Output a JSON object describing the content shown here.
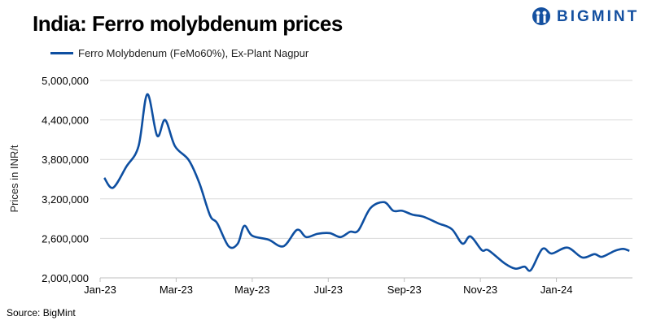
{
  "title": "India: Ferro molybdenum prices",
  "brand": "BIGMINT",
  "source": "Source: BigMint",
  "colors": {
    "line": "#0e4fa1",
    "grid": "#d9d9d9"
  },
  "chart_data": {
    "type": "line",
    "title": "India: Ferro molybdenum prices",
    "xlabel": "",
    "ylabel": "Prices in INR/t",
    "ylim": [
      2000000,
      5000000
    ],
    "yticks": [
      2000000,
      2600000,
      3200000,
      3800000,
      4400000,
      5000000
    ],
    "ytick_labels": [
      "2,000,000",
      "2,600,000",
      "3,200,000",
      "3,800,000",
      "4,400,000",
      "5,000,000"
    ],
    "x_unit": "months since Jan-23",
    "xlim": [
      0,
      14
    ],
    "xticks": [
      0,
      2,
      4,
      6,
      8,
      10,
      12
    ],
    "xtick_labels": [
      "Jan-23",
      "Mar-23",
      "May-23",
      "Jul-23",
      "Sep-23",
      "Nov-23",
      "Jan-24"
    ],
    "grid": true,
    "legend": "top-left",
    "series": [
      {
        "name": "Ferro Molybdenum (FeMo60%), Ex-Plant Nagpur",
        "x": [
          0.11,
          0.34,
          0.69,
          1.01,
          1.24,
          1.5,
          1.71,
          1.97,
          2.33,
          2.61,
          2.89,
          3.08,
          3.38,
          3.62,
          3.79,
          4.0,
          4.43,
          4.82,
          5.18,
          5.42,
          5.72,
          6.04,
          6.32,
          6.57,
          6.79,
          7.11,
          7.47,
          7.71,
          7.94,
          8.22,
          8.5,
          8.89,
          9.25,
          9.53,
          9.74,
          10.04,
          10.21,
          10.64,
          10.92,
          11.16,
          11.33,
          11.63,
          11.88,
          12.29,
          12.68,
          13.0,
          13.2,
          13.53,
          13.75,
          13.92
        ],
        "y": [
          3520000,
          3370000,
          3690000,
          4000000,
          4790000,
          4160000,
          4400000,
          4000000,
          3790000,
          3440000,
          2950000,
          2830000,
          2480000,
          2520000,
          2790000,
          2640000,
          2580000,
          2480000,
          2730000,
          2620000,
          2670000,
          2680000,
          2620000,
          2700000,
          2720000,
          3060000,
          3150000,
          3020000,
          3020000,
          2960000,
          2930000,
          2830000,
          2740000,
          2520000,
          2630000,
          2420000,
          2420000,
          2220000,
          2140000,
          2170000,
          2120000,
          2440000,
          2370000,
          2460000,
          2310000,
          2360000,
          2320000,
          2410000,
          2440000,
          2410000
        ]
      }
    ]
  }
}
